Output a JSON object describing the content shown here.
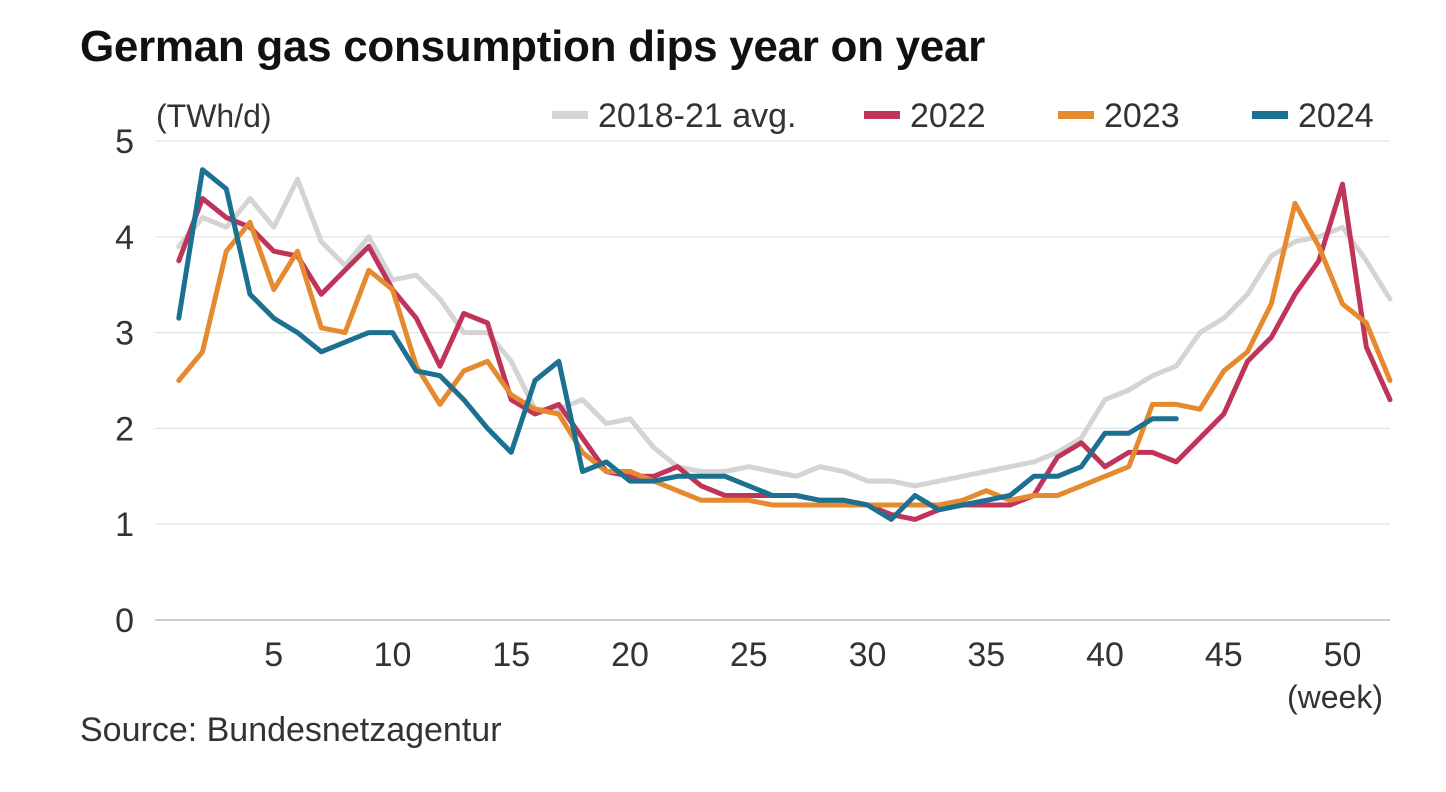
{
  "chart_data": {
    "type": "line",
    "title": "German gas consumption dips year on year",
    "ylabel": "(TWh/d)",
    "xlabel": "(week)",
    "source": "Source: Bundesnetzagentur",
    "xlim": [
      0,
      52
    ],
    "ylim": [
      0,
      5
    ],
    "x_ticks": [
      5,
      10,
      15,
      20,
      25,
      30,
      35,
      40,
      45,
      50
    ],
    "y_ticks": [
      0,
      1,
      2,
      3,
      4,
      5
    ],
    "grid": true,
    "legend_position": "top",
    "series": [
      {
        "name": "2018-21 avg.",
        "color": "#d4d4d4",
        "x": [
          1,
          2,
          3,
          4,
          5,
          6,
          7,
          8,
          9,
          10,
          11,
          12,
          13,
          14,
          15,
          16,
          17,
          18,
          19,
          20,
          21,
          22,
          23,
          24,
          25,
          26,
          27,
          28,
          29,
          30,
          31,
          32,
          33,
          34,
          35,
          36,
          37,
          38,
          39,
          40,
          41,
          42,
          43,
          44,
          45,
          46,
          47,
          48,
          49,
          50,
          51,
          52
        ],
        "values": [
          3.9,
          4.2,
          4.1,
          4.4,
          4.1,
          4.6,
          3.95,
          3.7,
          4.0,
          3.55,
          3.6,
          3.35,
          3.0,
          3.0,
          2.7,
          2.2,
          2.2,
          2.3,
          2.05,
          2.1,
          1.8,
          1.6,
          1.55,
          1.55,
          1.6,
          1.55,
          1.5,
          1.6,
          1.55,
          1.45,
          1.45,
          1.4,
          1.45,
          1.5,
          1.55,
          1.6,
          1.65,
          1.75,
          1.9,
          2.3,
          2.4,
          2.55,
          2.65,
          3.0,
          3.15,
          3.4,
          3.8,
          3.95,
          4.0,
          4.1,
          3.75,
          3.35
        ]
      },
      {
        "name": "2022",
        "color": "#c0345a",
        "x": [
          1,
          2,
          3,
          4,
          5,
          6,
          7,
          8,
          9,
          10,
          11,
          12,
          13,
          14,
          15,
          16,
          17,
          18,
          19,
          20,
          21,
          22,
          23,
          24,
          25,
          26,
          27,
          28,
          29,
          30,
          31,
          32,
          33,
          34,
          35,
          36,
          37,
          38,
          39,
          40,
          41,
          42,
          43,
          44,
          45,
          46,
          47,
          48,
          49,
          50,
          51,
          52
        ],
        "values": [
          3.75,
          4.4,
          4.2,
          4.1,
          3.85,
          3.8,
          3.4,
          3.65,
          3.9,
          3.45,
          3.15,
          2.65,
          3.2,
          3.1,
          2.3,
          2.15,
          2.25,
          1.9,
          1.55,
          1.5,
          1.5,
          1.6,
          1.4,
          1.3,
          1.3,
          1.3,
          1.3,
          1.25,
          1.25,
          1.2,
          1.1,
          1.05,
          1.15,
          1.2,
          1.2,
          1.2,
          1.3,
          1.7,
          1.85,
          1.6,
          1.75,
          1.75,
          1.65,
          1.9,
          2.15,
          2.7,
          2.95,
          3.4,
          3.75,
          4.55,
          2.85,
          2.3
        ]
      },
      {
        "name": "2023",
        "color": "#e58a2e",
        "x": [
          1,
          2,
          3,
          4,
          5,
          6,
          7,
          8,
          9,
          10,
          11,
          12,
          13,
          14,
          15,
          16,
          17,
          18,
          19,
          20,
          21,
          22,
          23,
          24,
          25,
          26,
          27,
          28,
          29,
          30,
          31,
          32,
          33,
          34,
          35,
          36,
          37,
          38,
          39,
          40,
          41,
          42,
          43,
          44,
          45,
          46,
          47,
          48,
          49,
          50,
          51,
          52
        ],
        "values": [
          2.5,
          2.8,
          3.85,
          4.15,
          3.45,
          3.85,
          3.05,
          3.0,
          3.65,
          3.45,
          2.65,
          2.25,
          2.6,
          2.7,
          2.35,
          2.2,
          2.15,
          1.75,
          1.55,
          1.55,
          1.45,
          1.35,
          1.25,
          1.25,
          1.25,
          1.2,
          1.2,
          1.2,
          1.2,
          1.2,
          1.2,
          1.2,
          1.2,
          1.25,
          1.35,
          1.25,
          1.3,
          1.3,
          1.4,
          1.5,
          1.6,
          2.25,
          2.25,
          2.2,
          2.6,
          2.8,
          3.3,
          4.35,
          3.9,
          3.3,
          3.1,
          2.5
        ]
      },
      {
        "name": "2024",
        "color": "#1c7191",
        "x": [
          1,
          2,
          3,
          4,
          5,
          6,
          7,
          8,
          9,
          10,
          11,
          12,
          13,
          14,
          15,
          16,
          17,
          18,
          19,
          20,
          21,
          22,
          23,
          24,
          25,
          26,
          27,
          28,
          29,
          30,
          31,
          32,
          33,
          34,
          35,
          36,
          37,
          38,
          39,
          40,
          41,
          42,
          43
        ],
        "values": [
          3.15,
          4.7,
          4.5,
          3.4,
          3.15,
          3.0,
          2.8,
          2.9,
          3.0,
          3.0,
          2.6,
          2.55,
          2.3,
          2.0,
          1.75,
          2.5,
          2.7,
          1.55,
          1.65,
          1.45,
          1.45,
          1.5,
          1.5,
          1.5,
          1.4,
          1.3,
          1.3,
          1.25,
          1.25,
          1.2,
          1.05,
          1.3,
          1.15,
          1.2,
          1.25,
          1.3,
          1.5,
          1.5,
          1.6,
          1.95,
          1.95,
          2.1,
          2.1
        ]
      }
    ]
  }
}
